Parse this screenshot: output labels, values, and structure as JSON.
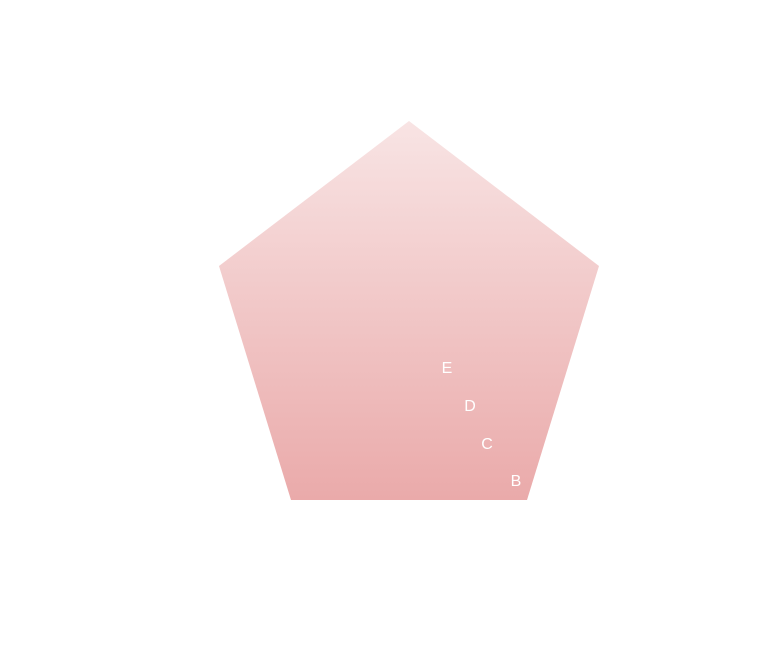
{
  "diagram": {
    "type": "pentagon-pyramid",
    "colors": {
      "fill_top": "#f8e4e4",
      "fill_bottom": "#eaaaaa",
      "label": "#ffffff"
    },
    "labels": [
      {
        "id": "e",
        "text": "E"
      },
      {
        "id": "d",
        "text": "D"
      },
      {
        "id": "c",
        "text": "C"
      },
      {
        "id": "b",
        "text": "B"
      }
    ]
  }
}
